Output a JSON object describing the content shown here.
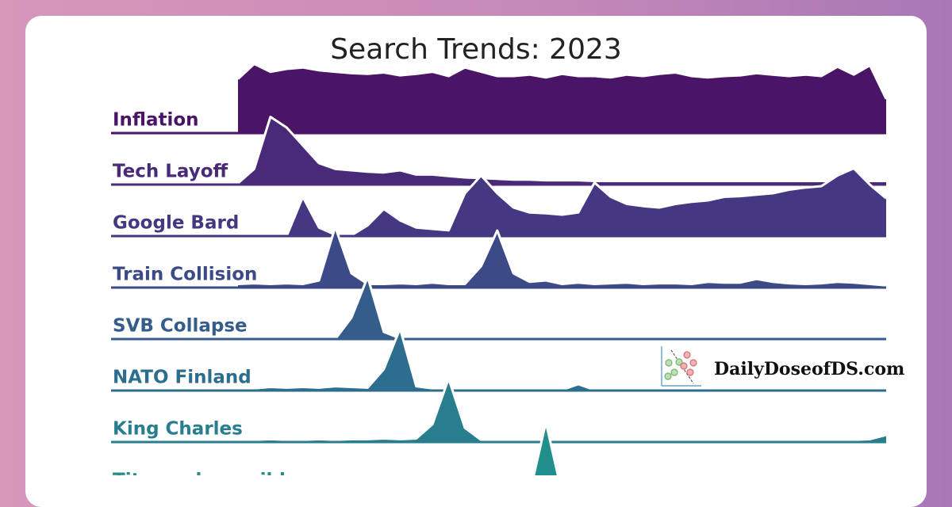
{
  "chart_data": {
    "type": "ridgeline",
    "title": "Search Trends: 2023",
    "series": [
      {
        "name": "Inflation",
        "color": "#4a1566",
        "values": [
          76,
          97,
          86,
          90,
          92,
          88,
          86,
          84,
          83,
          85,
          81,
          83,
          86,
          80,
          92,
          86,
          80,
          80,
          82,
          78,
          83,
          80,
          80,
          78,
          82,
          80,
          83,
          85,
          80,
          78,
          80,
          81,
          84,
          82,
          80,
          82,
          80,
          93,
          82,
          95,
          48
        ]
      },
      {
        "name": "Tech Layoff",
        "color": "#482a78",
        "values": [
          2,
          22,
          95,
          80,
          55,
          30,
          22,
          20,
          18,
          17,
          20,
          14,
          14,
          12,
          10,
          9,
          8,
          7,
          7,
          6,
          6,
          6,
          5,
          5,
          5,
          5,
          5,
          5,
          5,
          5,
          5,
          5,
          5,
          5,
          5,
          5,
          5,
          5,
          5,
          5,
          5
        ]
      },
      {
        "name": "Google Bard",
        "color": "#453781",
        "values": [
          0,
          0,
          0,
          0,
          55,
          12,
          2,
          1,
          15,
          38,
          22,
          12,
          10,
          8,
          60,
          85,
          60,
          40,
          33,
          32,
          30,
          33,
          75,
          55,
          45,
          42,
          40,
          45,
          48,
          50,
          55,
          56,
          58,
          60,
          65,
          68,
          70,
          85,
          95,
          72,
          53
        ]
      },
      {
        "name": "Train Collision",
        "color": "#3d4a88",
        "values": [
          5,
          6,
          5,
          6,
          5,
          10,
          85,
          20,
          5,
          5,
          6,
          5,
          7,
          5,
          5,
          30,
          80,
          20,
          8,
          10,
          5,
          7,
          5,
          6,
          7,
          5,
          6,
          6,
          5,
          8,
          7,
          7,
          12,
          8,
          6,
          5,
          6,
          8,
          7,
          5,
          3
        ]
      },
      {
        "name": "SVB Collapse",
        "color": "#355d8c",
        "values": [
          0,
          0,
          0,
          0,
          0,
          0,
          0,
          30,
          87,
          10,
          1,
          1,
          1,
          1,
          1,
          1,
          1,
          1,
          1,
          1,
          1,
          1,
          1,
          1,
          1,
          1,
          1,
          1,
          1,
          1,
          1,
          1,
          1,
          1,
          1,
          1,
          1,
          1,
          1,
          1,
          1
        ]
      },
      {
        "name": "NATO Finland",
        "color": "#2d6e8e",
        "values": [
          2,
          3,
          5,
          4,
          5,
          4,
          6,
          5,
          4,
          30,
          87,
          6,
          3,
          1,
          1,
          1,
          1,
          1,
          1,
          1,
          1,
          9,
          1,
          1,
          1,
          1,
          1,
          1,
          1,
          1,
          1,
          1,
          1,
          1,
          1,
          1,
          1,
          1,
          1,
          1,
          1
        ]
      },
      {
        "name": "King Charles",
        "color": "#287d8e",
        "values": [
          3,
          3,
          4,
          3,
          3,
          4,
          3,
          4,
          4,
          5,
          4,
          5,
          25,
          89,
          20,
          3,
          3,
          3,
          3,
          3,
          3,
          3,
          3,
          3,
          3,
          3,
          3,
          3,
          3,
          3,
          3,
          3,
          3,
          3,
          3,
          3,
          3,
          3,
          3,
          4,
          10
        ]
      },
      {
        "name": "Titan submersible",
        "color": "#21908c",
        "values": [
          0,
          0,
          0,
          0,
          0,
          0,
          0,
          0,
          0,
          0,
          0,
          0,
          0,
          0,
          0,
          0,
          0,
          0,
          0,
          100,
          0,
          0,
          0,
          0,
          0,
          0,
          0,
          0,
          0,
          0,
          0,
          0,
          0,
          0,
          0,
          0,
          0,
          0,
          0,
          0,
          0
        ]
      }
    ]
  },
  "watermark": "DailyDoseofDS.com"
}
